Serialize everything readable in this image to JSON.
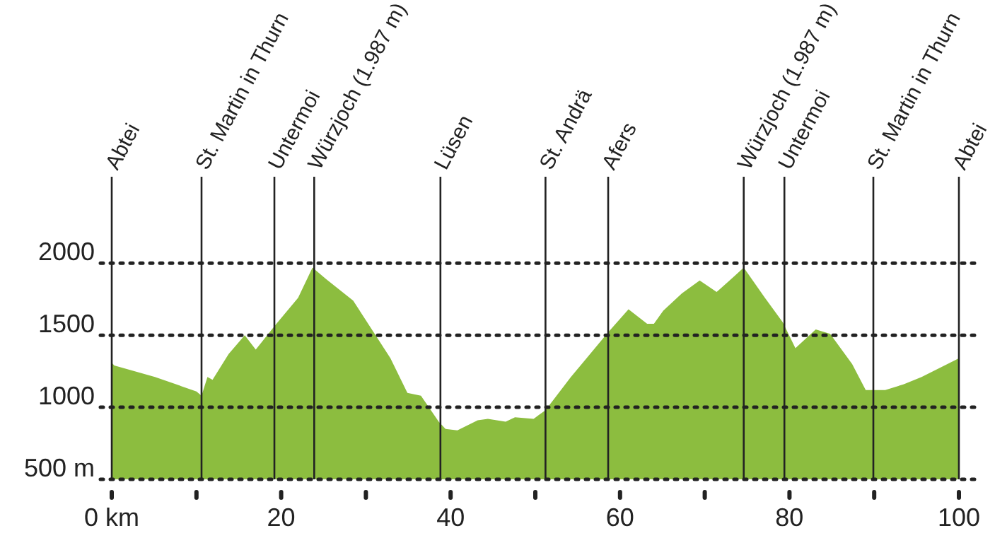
{
  "chart_data": {
    "type": "area",
    "color": "#8cbd3f",
    "x": [
      0,
      0.3,
      5.1,
      10,
      10.6,
      11.3,
      11.9,
      13.8,
      15.7,
      17,
      19.3,
      22,
      23.7,
      25.3,
      28.5,
      30.7,
      32.9,
      34.9,
      36.5,
      38.6,
      39.4,
      40.8,
      43.2,
      44.4,
      46.5,
      47.6,
      49.8,
      51.2,
      54.2,
      58.6,
      61,
      63.2,
      64,
      65.1,
      67.3,
      69.4,
      71.4,
      73.3,
      74.6,
      77.1,
      79.2,
      80.7,
      83.1,
      84.8,
      87.4,
      89,
      91.3,
      93.5,
      95.6,
      100
    ],
    "values": [
      1310,
      1290,
      1210,
      1110,
      1080,
      1210,
      1190,
      1370,
      1500,
      1400,
      1570,
      1760,
      1970,
      1890,
      1740,
      1540,
      1340,
      1100,
      1080,
      900,
      850,
      840,
      910,
      920,
      900,
      930,
      920,
      980,
      1210,
      1520,
      1680,
      1580,
      1580,
      1670,
      1790,
      1880,
      1800,
      1900,
      1970,
      1760,
      1590,
      1410,
      1540,
      1510,
      1300,
      1120,
      1120,
      1160,
      1210,
      1340
    ],
    "xlim": [
      0,
      100
    ],
    "ylim": [
      500,
      2600
    ],
    "xticks": [
      {
        "value": 0,
        "label": "0 km"
      },
      {
        "value": 10,
        "label": null
      },
      20,
      {
        "value": 30,
        "label": null
      },
      40,
      {
        "value": 50,
        "label": null
      },
      60,
      {
        "value": 70,
        "label": null
      },
      80,
      {
        "value": 90,
        "label": null
      },
      100
    ],
    "yticks": [
      {
        "value": 500,
        "label": "500 m"
      },
      1000,
      1500,
      2000
    ],
    "grid": "y",
    "line_style": "dotted",
    "ref_lines": [
      {
        "axis": "x",
        "value": 0,
        "label": "Abtei"
      },
      {
        "axis": "x",
        "value": 10.6,
        "label": "St. Martin in Thurn"
      },
      {
        "axis": "x",
        "value": 19.2,
        "label": "Untermoi"
      },
      {
        "axis": "x",
        "value": 23.9,
        "label": "Würzjoch (1.987 m)"
      },
      {
        "axis": "x",
        "value": 38.8,
        "label": "Lüsen"
      },
      {
        "axis": "x",
        "value": 51.2,
        "label": "St. Andrä"
      },
      {
        "axis": "x",
        "value": 58.6,
        "label": "Afers"
      },
      {
        "axis": "x",
        "value": 74.6,
        "label": "Würzjoch (1.987 m)"
      },
      {
        "axis": "x",
        "value": 79.4,
        "label": "Untermoi"
      },
      {
        "axis": "x",
        "value": 89.9,
        "label": "St. Martin in Thurn"
      },
      {
        "axis": "x",
        "value": 100,
        "label": "Abtei"
      }
    ]
  }
}
